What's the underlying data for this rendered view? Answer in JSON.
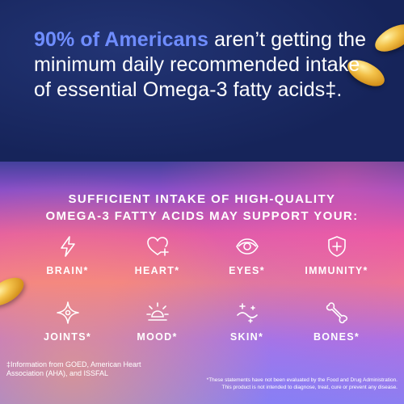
{
  "headline": {
    "highlight": "90% of Americans",
    "rest": " aren’t getting the minimum daily recommended intake of essential Omega-3 fatty acids‡."
  },
  "subheading": {
    "line1": "SUFFICIENT INTAKE OF HIGH-QUALITY",
    "line2": "OMEGA-3 FATTY ACIDS MAY SUPPORT YOUR:"
  },
  "benefits": [
    {
      "label": "BRAIN*",
      "icon": "lightning-icon"
    },
    {
      "label": "HEART*",
      "icon": "heart-plus-icon"
    },
    {
      "label": "EYES*",
      "icon": "eye-icon"
    },
    {
      "label": "IMMUNITY*",
      "icon": "shield-plus-icon"
    },
    {
      "label": "JOINTS*",
      "icon": "sparkle-icon"
    },
    {
      "label": "MOOD*",
      "icon": "sun-icon"
    },
    {
      "label": "SKIN*",
      "icon": "sparkle-wave-icon"
    },
    {
      "label": "BONES*",
      "icon": "bone-icon"
    }
  ],
  "footnotes": {
    "left": "‡Information from GOED, American Heart Association (AHA), and ISSFAL",
    "right_line1": "*These statements have not been evaluated by the Food and Drug Administration.",
    "right_line2": "This product is not intended to diagnose, treat, cure or prevent any disease."
  },
  "colors": {
    "highlight": "#6f8dff",
    "top_band": "#16245a",
    "capsule": "#f3c24a"
  }
}
